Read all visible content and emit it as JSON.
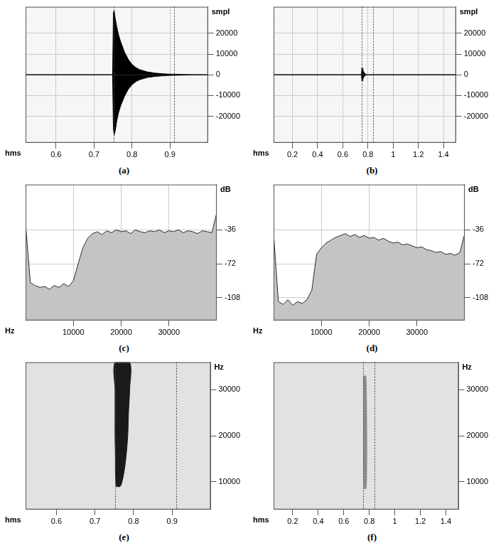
{
  "chart_data": [
    {
      "type": "waveform",
      "title": "(a)",
      "xlabel": "hms",
      "ylabel": "smpl",
      "x": [
        0.52,
        0.749,
        0.751,
        0.753,
        0.756,
        0.76,
        0.765,
        0.77,
        0.78,
        0.79,
        0.8,
        0.81,
        0.82,
        0.84,
        0.86,
        0.88,
        0.9,
        0.95,
        1.0
      ],
      "series": [
        {
          "color": "#000000",
          "values": [
            0,
            0,
            30000,
            31000,
            27000,
            23000,
            19000,
            16000,
            11000,
            7500,
            5000,
            3500,
            2500,
            1400,
            800,
            500,
            300,
            100,
            0
          ]
        },
        {
          "color": "#000000",
          "values": [
            0,
            0,
            -26000,
            -29000,
            -27000,
            -22000,
            -18000,
            -15000,
            -10500,
            -7000,
            -4800,
            -3300,
            -2400,
            -1300,
            -800,
            -500,
            -300,
            -100,
            0
          ]
        }
      ],
      "xlim": [
        0.52,
        1.0
      ],
      "xticks": [
        0.6,
        0.7,
        0.8,
        0.9
      ],
      "ylim": [
        -32768,
        32767
      ],
      "yticks": [
        -20000,
        -10000,
        0,
        10000,
        20000
      ],
      "selection": [
        0.752,
        0.91
      ],
      "grid": true
    },
    {
      "type": "waveform",
      "title": "(b)",
      "xlabel": "hms",
      "ylabel": "smpl",
      "x": [
        0.05,
        0.748,
        0.752,
        0.756,
        0.76,
        0.765,
        0.77,
        0.78,
        0.79,
        1.5
      ],
      "series": [
        {
          "color": "#000000",
          "values": [
            0,
            0,
            3500,
            3000,
            2200,
            1500,
            900,
            400,
            0,
            0
          ]
        },
        {
          "color": "#000000",
          "values": [
            0,
            0,
            -3000,
            -2800,
            -2000,
            -1400,
            -800,
            -300,
            0,
            0
          ]
        }
      ],
      "xlim": [
        0.05,
        1.5
      ],
      "xticks": [
        0.2,
        0.4,
        0.6,
        0.8,
        1.0,
        1.2,
        1.4
      ],
      "ylim": [
        -32768,
        32767
      ],
      "yticks": [
        -20000,
        -10000,
        0,
        10000,
        20000
      ],
      "selection": [
        0.75,
        0.84
      ],
      "grid": true
    },
    {
      "type": "spectrum",
      "title": "(c)",
      "xlabel": "Hz",
      "ylabel": "dB",
      "color": "#2b2b2b",
      "x": [
        0,
        1000,
        2000,
        3000,
        4000,
        5000,
        6000,
        7000,
        8000,
        9000,
        10000,
        11000,
        12000,
        13000,
        14000,
        15000,
        16000,
        17000,
        18000,
        19000,
        20000,
        21000,
        22000,
        23000,
        24000,
        25000,
        26000,
        27000,
        28000,
        29000,
        30000,
        31000,
        32000,
        33000,
        34000,
        35000,
        36000,
        37000,
        38000,
        39000,
        40000
      ],
      "values": [
        -30,
        -92,
        -95,
        -97,
        -96,
        -99,
        -95,
        -97,
        -93,
        -96,
        -90,
        -72,
        -55,
        -45,
        -40,
        -38,
        -41,
        -37,
        -39,
        -36,
        -38,
        -37,
        -40,
        -36,
        -38,
        -39,
        -37,
        -38,
        -36,
        -39,
        -37,
        -38,
        -36,
        -39,
        -37,
        -38,
        -40,
        -37,
        -38,
        -39,
        -18
      ],
      "xlim": [
        0,
        40000
      ],
      "xticks": [
        10000,
        20000,
        30000
      ],
      "ylim": [
        -132,
        12
      ],
      "yticks": [
        -108,
        -72,
        -36
      ],
      "grid": true
    },
    {
      "type": "spectrum",
      "title": "(d)",
      "xlabel": "Hz",
      "ylabel": "dB",
      "color": "#2b2b2b",
      "x": [
        0,
        1000,
        2000,
        3000,
        4000,
        5000,
        6000,
        7000,
        8000,
        9000,
        10000,
        11000,
        12000,
        13000,
        14000,
        15000,
        16000,
        17000,
        18000,
        19000,
        20000,
        21000,
        22000,
        23000,
        24000,
        25000,
        26000,
        27000,
        28000,
        29000,
        30000,
        31000,
        32000,
        33000,
        34000,
        35000,
        36000,
        37000,
        38000,
        39000,
        40000
      ],
      "values": [
        -40,
        -112,
        -115,
        -110,
        -116,
        -112,
        -114,
        -110,
        -100,
        -62,
        -55,
        -50,
        -47,
        -44,
        -42,
        -40,
        -43,
        -41,
        -44,
        -42,
        -45,
        -44,
        -47,
        -45,
        -48,
        -50,
        -49,
        -52,
        -51,
        -53,
        -55,
        -54,
        -57,
        -58,
        -60,
        -59,
        -62,
        -61,
        -63,
        -60,
        -40
      ],
      "xlim": [
        0,
        40000
      ],
      "xticks": [
        10000,
        20000,
        30000
      ],
      "ylim": [
        -132,
        12
      ],
      "yticks": [
        -108,
        -72,
        -36
      ],
      "grid": true
    },
    {
      "type": "spectrogram",
      "title": "(e)",
      "xlabel": "hms",
      "ylabel": "Hz",
      "color": "#1a1a1a",
      "freq": [
        9000,
        10000,
        12000,
        15000,
        20000,
        25000,
        30000,
        36000
      ],
      "t_start": [
        0.755,
        0.754,
        0.753,
        0.753,
        0.752,
        0.752,
        0.752,
        0.752
      ],
      "t_end": [
        0.765,
        0.77,
        0.775,
        0.78,
        0.785,
        0.787,
        0.79,
        0.79
      ],
      "xlim": [
        0.52,
        1.0
      ],
      "xticks": [
        0.6,
        0.7,
        0.8,
        0.9
      ],
      "ylim": [
        4000,
        36000
      ],
      "yticks": [
        10000,
        20000,
        30000
      ],
      "selection": [
        0.752,
        0.91
      ],
      "grid": false
    },
    {
      "type": "spectrogram",
      "title": "(f)",
      "xlabel": "hms",
      "ylabel": "Hz",
      "color": "#8a8a8a",
      "freq": [
        8500,
        10000,
        15000,
        20000,
        25000,
        30000,
        33000
      ],
      "t_start": [
        0.76,
        0.757,
        0.755,
        0.755,
        0.755,
        0.756,
        0.758
      ],
      "t_end": [
        0.772,
        0.778,
        0.78,
        0.78,
        0.779,
        0.777,
        0.772
      ],
      "xlim": [
        0.05,
        1.5
      ],
      "xticks": [
        0.2,
        0.4,
        0.6,
        0.8,
        1.0,
        1.2,
        1.4
      ],
      "ylim": [
        4000,
        36000
      ],
      "yticks": [
        10000,
        20000,
        30000
      ],
      "selection": [
        0.75,
        0.84
      ],
      "grid": false
    }
  ]
}
